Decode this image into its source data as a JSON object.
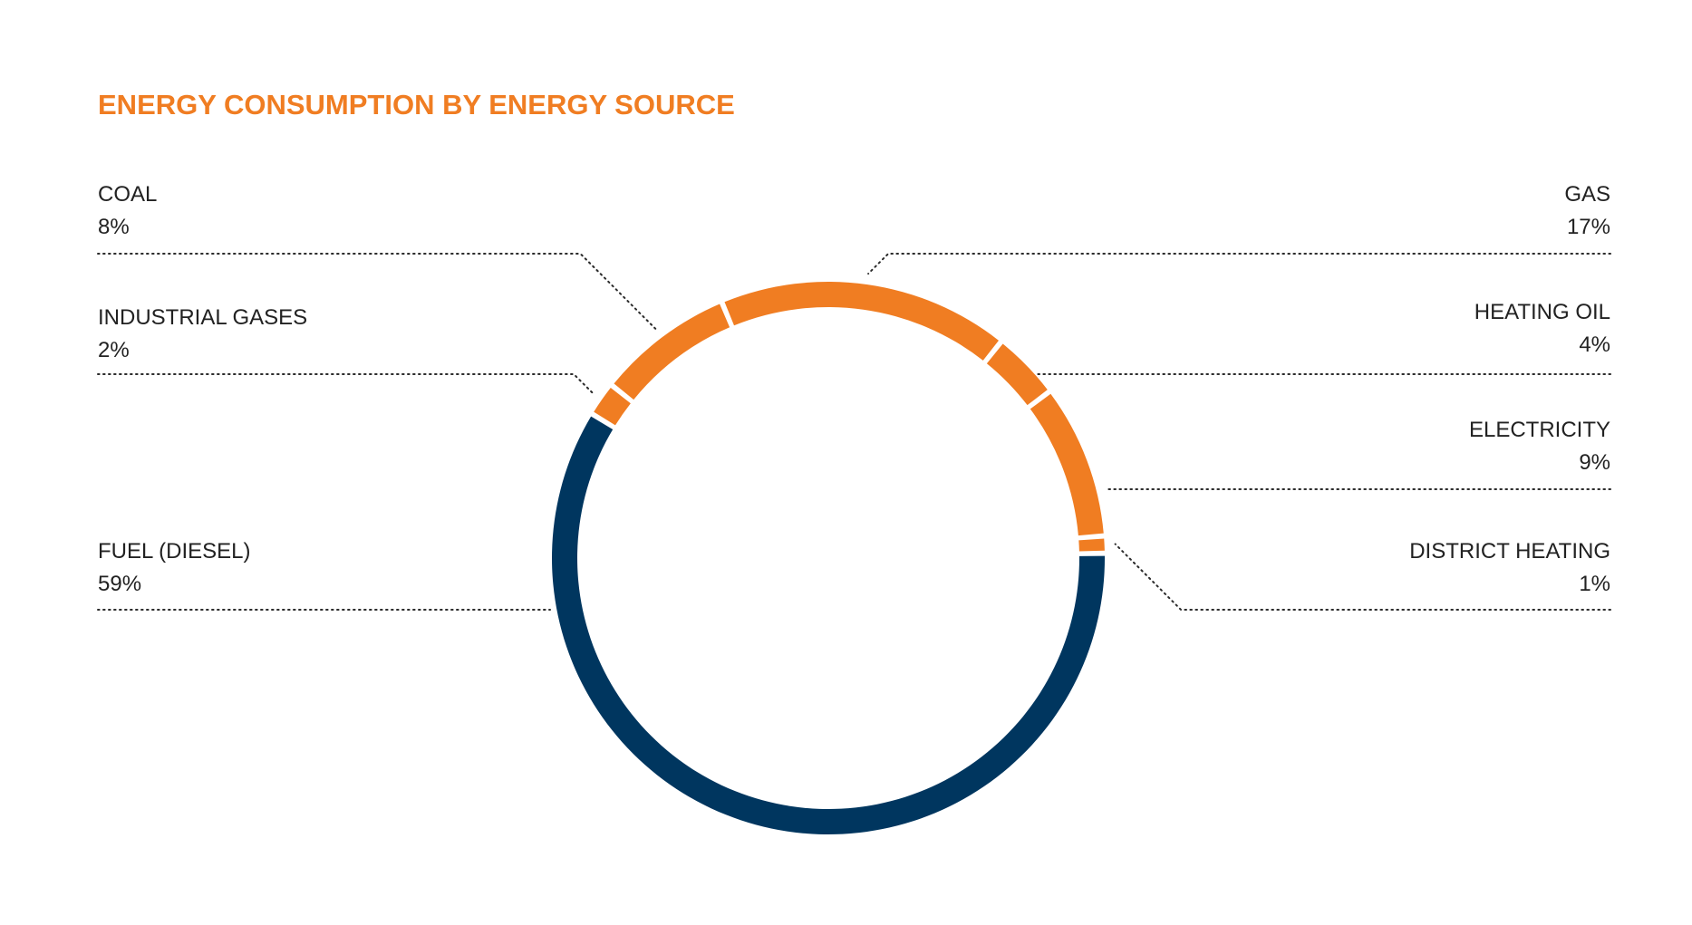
{
  "colors": {
    "accent_orange": "#F07D22",
    "navy": "#00365F",
    "title": "#F07D22",
    "text": "#222222"
  },
  "chart_data": {
    "type": "pie",
    "style": "donut",
    "title": "ENERGY CONSUMPTION BY ENERGY SOURCE",
    "slices": [
      {
        "label": "DISTRICT HEATING",
        "value": 1,
        "display": "1%",
        "color": "#F07D22"
      },
      {
        "label": "ELECTRICITY",
        "value": 9,
        "display": "9%",
        "color": "#F07D22"
      },
      {
        "label": "HEATING OIL",
        "value": 4,
        "display": "4%",
        "color": "#F07D22"
      },
      {
        "label": "GAS",
        "value": 17,
        "display": "17%",
        "color": "#F07D22"
      },
      {
        "label": "COAL",
        "value": 8,
        "display": "8%",
        "color": "#F07D22"
      },
      {
        "label": "INDUSTRIAL GASES",
        "value": 2,
        "display": "2%",
        "color": "#F07D22"
      },
      {
        "label": "FUEL (DIESEL)",
        "value": 59,
        "display": "59%",
        "color": "#00365F"
      }
    ]
  }
}
